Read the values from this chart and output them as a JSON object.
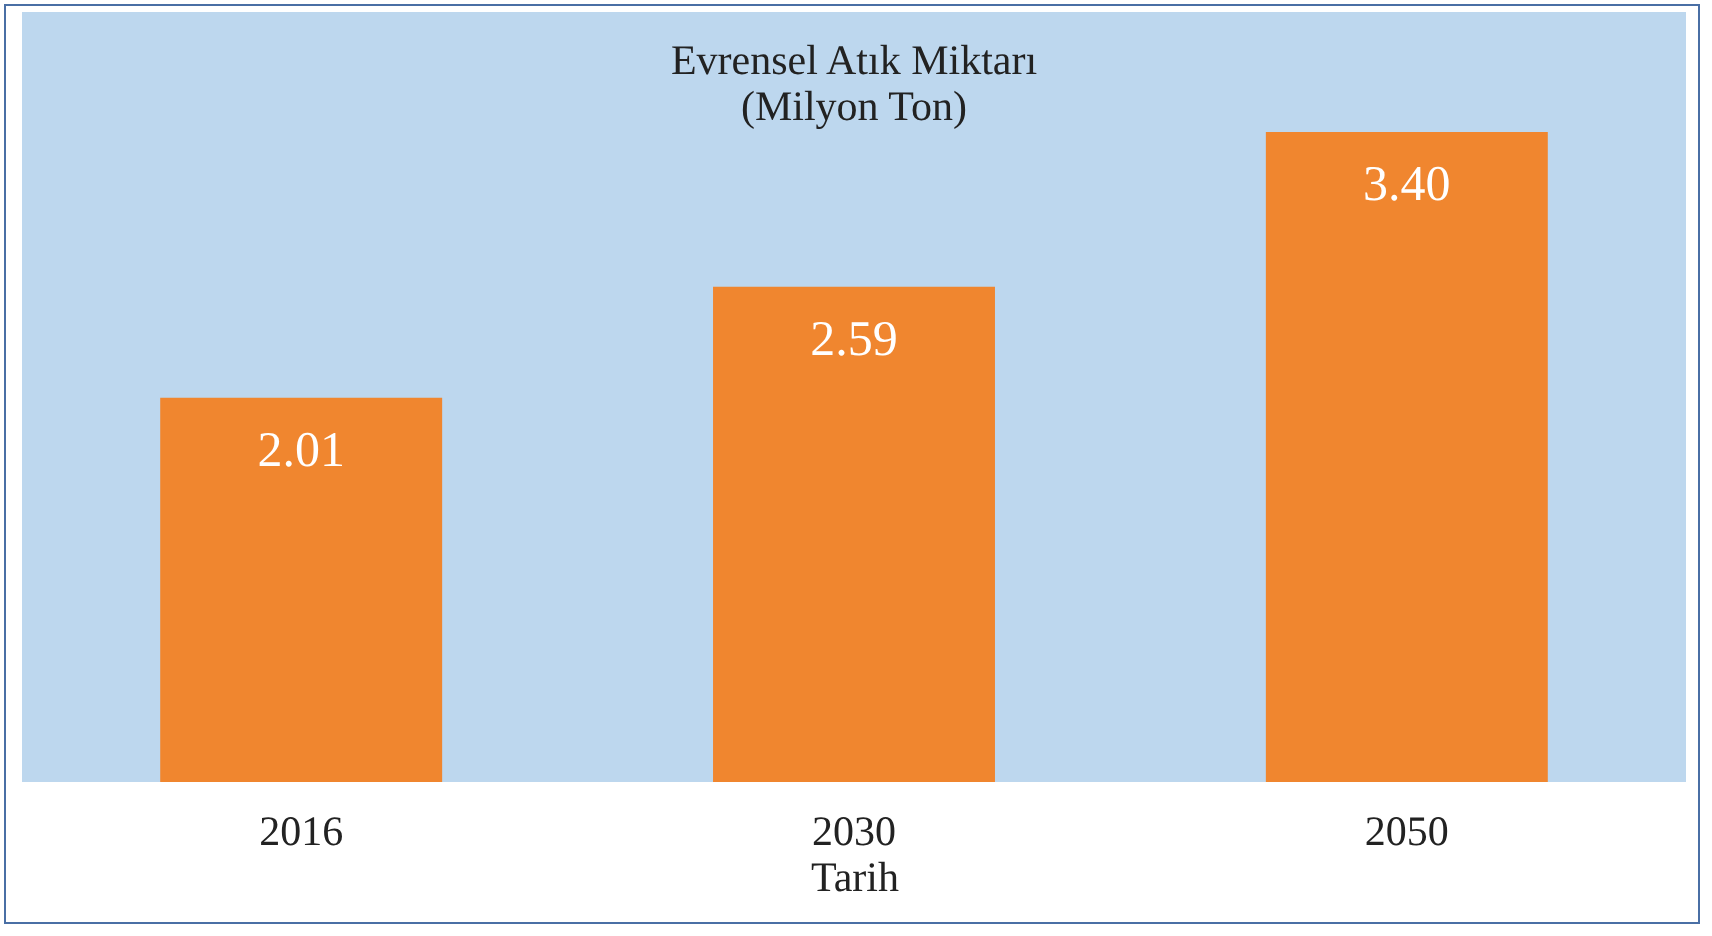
{
  "chart_data": {
    "type": "bar",
    "title": "Evrensel Atık Miktarı",
    "subtitle": "(Milyon Ton)",
    "xlabel": "Tarih",
    "categories": [
      "2016",
      "2030",
      "2050"
    ],
    "values": [
      2.01,
      2.59,
      3.4
    ],
    "value_labels": [
      "2.01",
      "2.59",
      "3.40"
    ],
    "color": "#f0862f"
  }
}
